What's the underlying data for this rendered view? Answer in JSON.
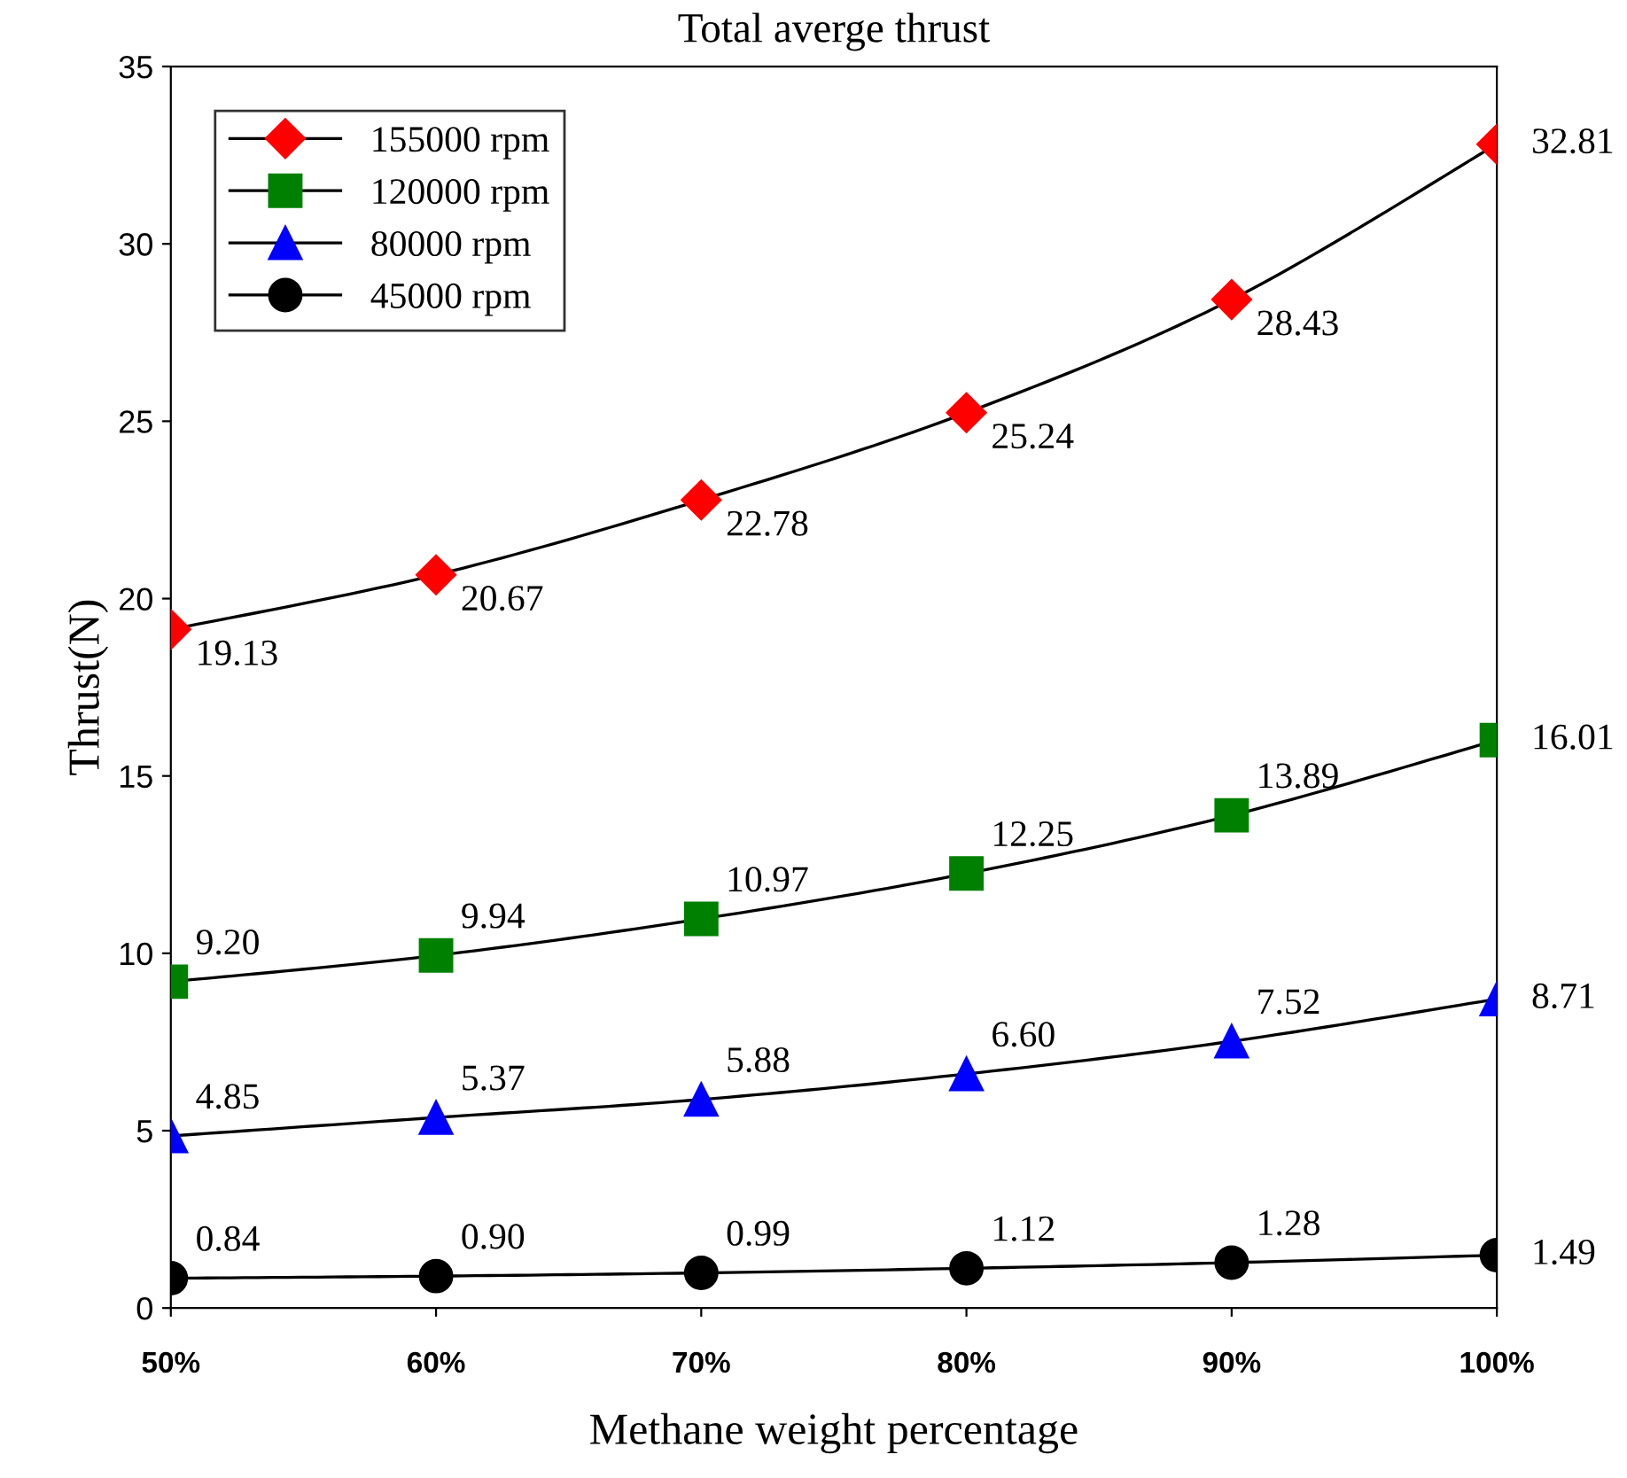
{
  "chart_data": {
    "type": "line",
    "title": "Total averge thrust",
    "xlabel": "Methane weight percentage",
    "ylabel": "Thrust(N)",
    "categories": [
      "50%",
      "60%",
      "70%",
      "80%",
      "90%",
      "100%"
    ],
    "series": [
      {
        "name": "155000 rpm",
        "color": "#ff0000",
        "marker": "diamond",
        "values": [
          19.13,
          20.67,
          22.78,
          25.24,
          28.43,
          32.81
        ],
        "value_labels": [
          "19.13",
          "20.67",
          "22.78",
          "25.24",
          "28.43",
          "32.81"
        ]
      },
      {
        "name": "120000 rpm",
        "color": "#008000",
        "marker": "square",
        "values": [
          9.2,
          9.94,
          10.97,
          12.25,
          13.89,
          16.01
        ],
        "value_labels": [
          "9.20",
          "9.94",
          "10.97",
          "12.25",
          "13.89",
          "16.01"
        ]
      },
      {
        "name": "80000 rpm",
        "color": "#0000ff",
        "marker": "triangle",
        "values": [
          4.85,
          5.37,
          5.88,
          6.6,
          7.52,
          8.71
        ],
        "value_labels": [
          "4.85",
          "5.37",
          "5.88",
          "6.60",
          "7.52",
          "8.71"
        ]
      },
      {
        "name": "45000 rpm",
        "color": "#000000",
        "marker": "circle",
        "values": [
          0.84,
          0.9,
          0.99,
          1.12,
          1.28,
          1.49
        ],
        "value_labels": [
          "0.84",
          "0.90",
          "0.99",
          "1.12",
          "1.28",
          "1.49"
        ]
      }
    ],
    "ylim": [
      0,
      35
    ],
    "yticks": [
      0,
      5,
      10,
      15,
      20,
      25,
      30,
      35
    ],
    "grid": false,
    "legend": "top left"
  }
}
